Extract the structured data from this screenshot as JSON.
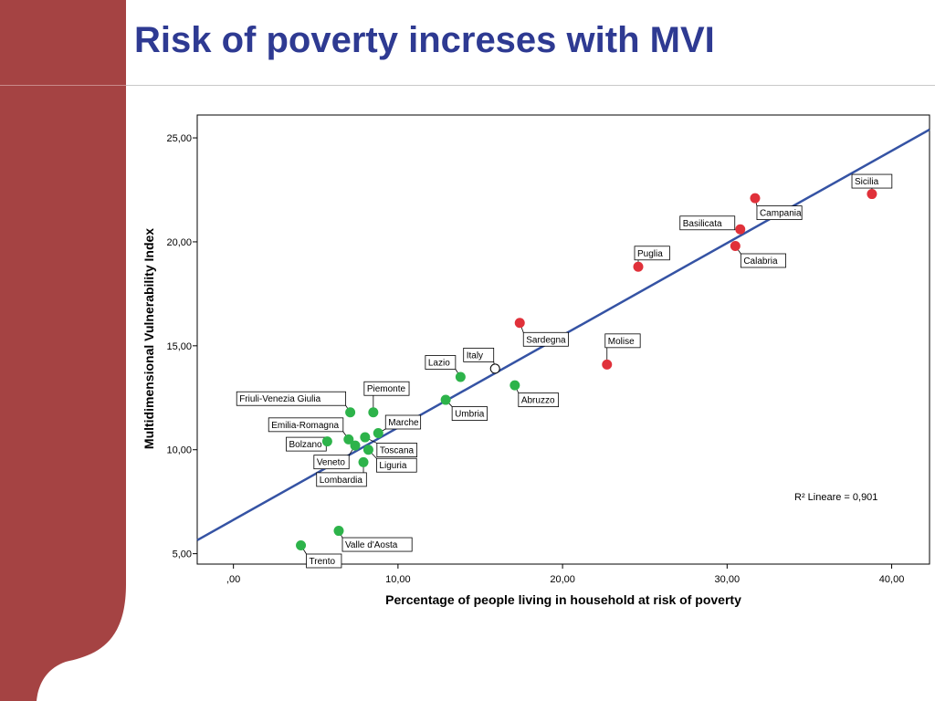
{
  "slide": {
    "title": "Risk of poverty increses with MVI",
    "colors": {
      "title": "#2e3a92",
      "sidebar": "#a54343",
      "north": "#2db34a",
      "south": "#e0313a",
      "italy": "#ffffff",
      "fit_line": "#3553a4"
    }
  },
  "chart_data": {
    "type": "scatter",
    "xlabel": "Percentage of people living in household at risk of poverty",
    "ylabel": "Multidimensional Vulnerability Index",
    "xlim": [
      -2.2,
      42.3
    ],
    "ylim": [
      4.5,
      26.1
    ],
    "x_ticks": [
      0,
      10,
      20,
      30,
      40
    ],
    "x_tick_labels": [
      ",00",
      "10,00",
      "20,00",
      "30,00",
      "40,00"
    ],
    "y_ticks": [
      5,
      10,
      15,
      20,
      25
    ],
    "y_tick_labels": [
      "5,00",
      "10,00",
      "15,00",
      "20,00",
      "25,00"
    ],
    "grid": false,
    "fit_line": {
      "r2_label": "R² Lineare = 0,901",
      "x": [
        -2.2,
        42.3
      ],
      "y": [
        5.65,
        25.4
      ]
    },
    "points": [
      {
        "name": "Sicilia",
        "x": 38.8,
        "y": 22.3,
        "group": "south"
      },
      {
        "name": "Campania",
        "x": 31.7,
        "y": 22.1,
        "group": "south"
      },
      {
        "name": "Basilicata",
        "x": 30.8,
        "y": 20.6,
        "group": "south"
      },
      {
        "name": "Calabria",
        "x": 30.5,
        "y": 19.8,
        "group": "south"
      },
      {
        "name": "Puglia",
        "x": 24.6,
        "y": 18.8,
        "group": "south"
      },
      {
        "name": "Sardegna",
        "x": 17.4,
        "y": 16.1,
        "group": "south"
      },
      {
        "name": "Molise",
        "x": 22.7,
        "y": 14.1,
        "group": "south"
      },
      {
        "name": "Italy",
        "x": 15.9,
        "y": 13.9,
        "group": "italy"
      },
      {
        "name": "Lazio",
        "x": 13.8,
        "y": 13.5,
        "group": "north"
      },
      {
        "name": "Abruzzo",
        "x": 17.1,
        "y": 13.1,
        "group": "north"
      },
      {
        "name": "Umbria",
        "x": 12.9,
        "y": 12.4,
        "group": "north"
      },
      {
        "name": "Piemonte",
        "x": 8.5,
        "y": 11.8,
        "group": "north"
      },
      {
        "name": "Friuli-Venezia Giulia",
        "x": 7.1,
        "y": 11.8,
        "group": "north"
      },
      {
        "name": "Marche",
        "x": 8.8,
        "y": 10.8,
        "group": "north"
      },
      {
        "name": "Emilia-Romagna",
        "x": 7.0,
        "y": 10.5,
        "group": "north"
      },
      {
        "name": "Bolzano",
        "x": 5.7,
        "y": 10.4,
        "group": "north"
      },
      {
        "name": "Veneto",
        "x": 7.4,
        "y": 10.2,
        "group": "north"
      },
      {
        "name": "Toscana",
        "x": 8.0,
        "y": 10.6,
        "group": "north"
      },
      {
        "name": "Liguria",
        "x": 8.2,
        "y": 10.0,
        "group": "north"
      },
      {
        "name": "Lombardia",
        "x": 7.9,
        "y": 9.4,
        "group": "north"
      },
      {
        "name": "Valle d'Aosta",
        "x": 6.4,
        "y": 6.1,
        "group": "north"
      },
      {
        "name": "Trento",
        "x": 4.1,
        "y": 5.4,
        "group": "north"
      }
    ]
  }
}
